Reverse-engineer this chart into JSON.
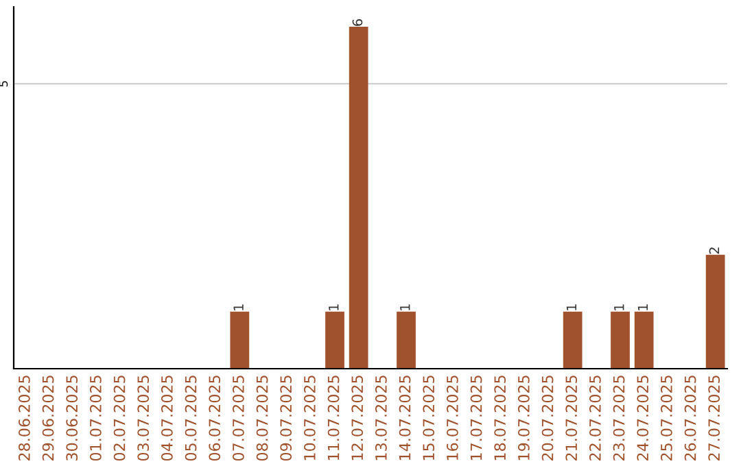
{
  "chart_data": {
    "type": "bar",
    "categories": [
      "28.06.2025",
      "29.06.2025",
      "30.06.2025",
      "01.07.2025",
      "02.07.2025",
      "03.07.2025",
      "04.07.2025",
      "05.07.2025",
      "06.07.2025",
      "07.07.2025",
      "08.07.2025",
      "09.07.2025",
      "10.07.2025",
      "11.07.2025",
      "12.07.2025",
      "13.07.2025",
      "14.07.2025",
      "15.07.2025",
      "16.07.2025",
      "17.07.2025",
      "18.07.2025",
      "19.07.2025",
      "20.07.2025",
      "21.07.2025",
      "22.07.2025",
      "23.07.2025",
      "24.07.2025",
      "25.07.2025",
      "26.07.2025",
      "27.07.2025"
    ],
    "values": [
      0,
      0,
      0,
      0,
      0,
      0,
      0,
      0,
      0,
      1,
      0,
      0,
      0,
      1,
      6,
      0,
      1,
      0,
      0,
      0,
      0,
      0,
      0,
      1,
      0,
      1,
      1,
      0,
      0,
      2
    ],
    "value_labels": [
      null,
      null,
      null,
      null,
      null,
      null,
      null,
      null,
      null,
      "1",
      null,
      null,
      null,
      "1",
      "6",
      null,
      "1",
      null,
      null,
      null,
      null,
      null,
      null,
      "1",
      null,
      "1",
      "1",
      null,
      null,
      "2"
    ],
    "color": "#a0522d",
    "ylim": [
      0,
      6.35
    ],
    "yticks": [
      5
    ],
    "grid": "y"
  }
}
